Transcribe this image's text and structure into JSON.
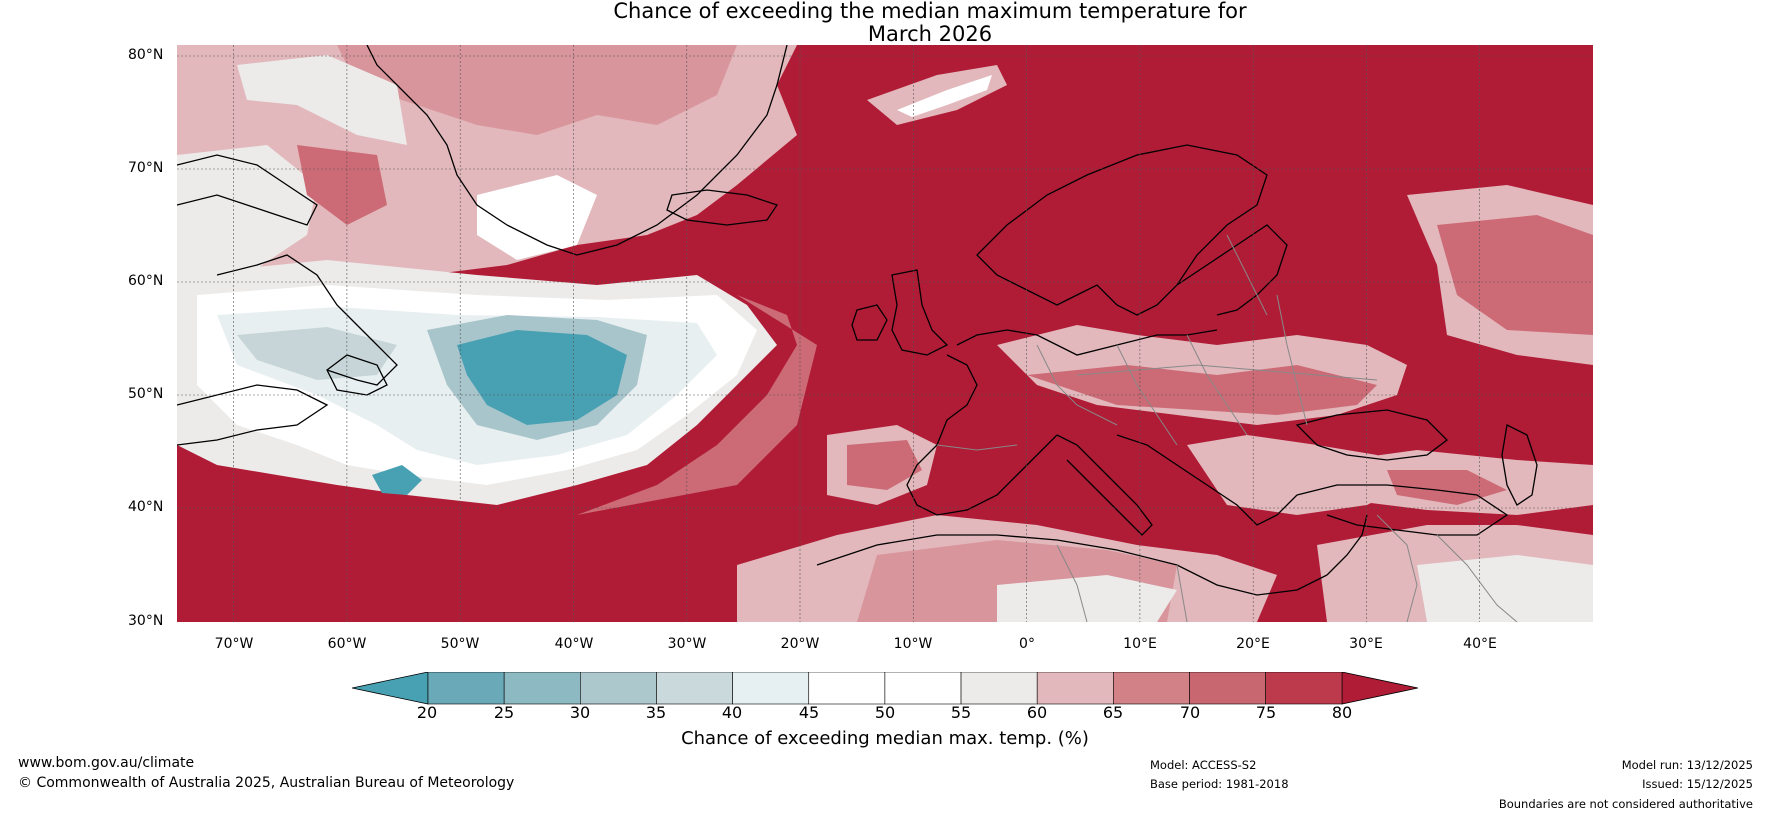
{
  "title": {
    "line1": "Chance of exceeding the median maximum temperature for",
    "line2": "March 2026"
  },
  "map": {
    "lat_labels": [
      "80°N",
      "70°N",
      "60°N",
      "50°N",
      "40°N",
      "30°N"
    ],
    "lon_labels": [
      "70°W",
      "60°W",
      "50°W",
      "40°W",
      "30°W",
      "20°W",
      "10°W",
      "0°",
      "10°E",
      "20°E",
      "30°E",
      "40°E"
    ],
    "extent": {
      "lon_min": -75,
      "lon_max": 50,
      "lat_min": 30,
      "lat_max": 81
    },
    "colors": {
      "very_warm": "#b01c36",
      "warm": "#c1404f",
      "mild_warm": "#cc6b76",
      "light_warm": "#d8959c",
      "pale_warm": "#e2b8bc",
      "neutral": "#ecebea",
      "white": "#ffffff",
      "pale_cool": "#e8eff1",
      "light_cool": "#c7d5d8",
      "mid_cool": "#a8c5cb",
      "cool": "#76afbd",
      "cold": "#48a0b3",
      "coastline": "#000000",
      "border": "#888888",
      "grid": "#555555"
    }
  },
  "colorbar": {
    "ticks": [
      "20",
      "25",
      "30",
      "35",
      "40",
      "45",
      "50",
      "55",
      "60",
      "65",
      "70",
      "75",
      "80"
    ],
    "bins": [
      "#48a0b3",
      "#6aaab8",
      "#8db9c3",
      "#adc8cc",
      "#cad9db",
      "#e6eff1",
      "#ffffff",
      "#ffffff",
      "#ecebea",
      "#e2b8bc",
      "#d28187",
      "#c96771",
      "#bd3a4d",
      "#b01c36"
    ],
    "label": "Chance of exceeding median max. temp. (%)"
  },
  "footer": {
    "url": "www.bom.gov.au/climate",
    "copyright": "© Commonwealth of Australia 2025, Australian Bureau of Meteorology",
    "model": "Model: ACCESS-S2",
    "base_period": "Base period: 1981-2018",
    "model_run": "Model run: 13/12/2025",
    "issued": "Issued: 15/12/2025",
    "disclaimer": "Boundaries are not considered authoritative"
  }
}
